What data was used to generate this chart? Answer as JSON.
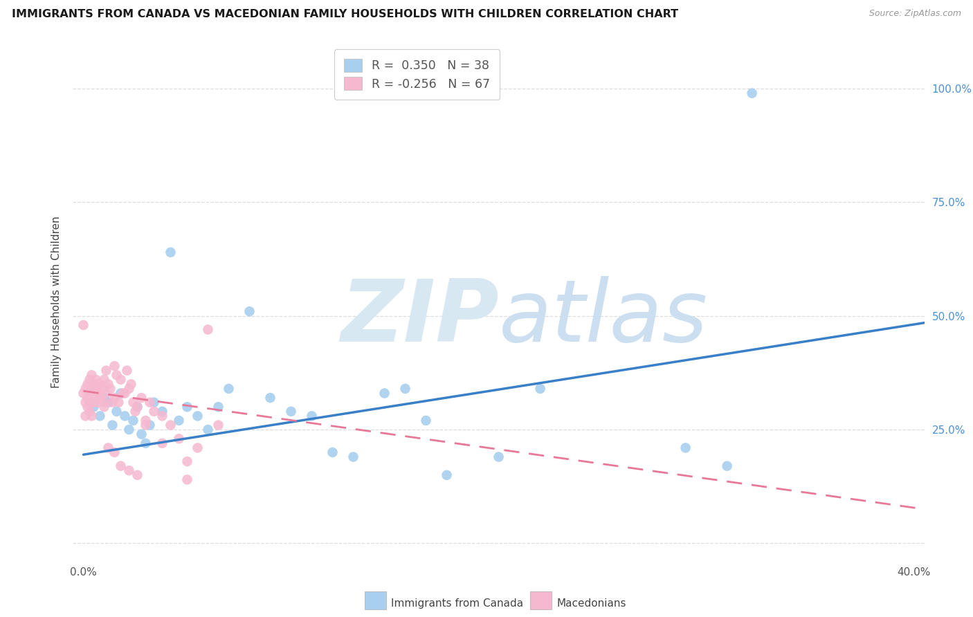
{
  "title": "IMMIGRANTS FROM CANADA VS MACEDONIAN FAMILY HOUSEHOLDS WITH CHILDREN CORRELATION CHART",
  "source": "Source: ZipAtlas.com",
  "ylabel": "Family Households with Children",
  "xlim": [
    -0.005,
    0.405
  ],
  "ylim": [
    -0.04,
    1.1
  ],
  "x_ticks": [
    0.0,
    0.05,
    0.1,
    0.15,
    0.2,
    0.25,
    0.3,
    0.35,
    0.4
  ],
  "x_tick_labels": [
    "0.0%",
    "",
    "",
    "",
    "",
    "",
    "",
    "",
    "40.0%"
  ],
  "y_ticks": [
    0.0,
    0.25,
    0.5,
    0.75,
    1.0
  ],
  "right_y_labels": [
    "",
    "25.0%",
    "50.0%",
    "75.0%",
    "100.0%"
  ],
  "blue_color": "#A8CFEE",
  "pink_color": "#F5B8CF",
  "blue_line_color": "#3A80C8",
  "pink_line_color": "#E87898",
  "legend_blue_text": "R =  0.350   N = 38",
  "legend_pink_text": "R = -0.256   N = 67",
  "bottom_label_blue": "Immigrants from Canada",
  "bottom_label_pink": "Macedonians",
  "blue_scatter_x": [
    0.005,
    0.008,
    0.01,
    0.012,
    0.014,
    0.016,
    0.018,
    0.02,
    0.022,
    0.024,
    0.026,
    0.028,
    0.03,
    0.032,
    0.034,
    0.038,
    0.042,
    0.046,
    0.05,
    0.055,
    0.06,
    0.065,
    0.07,
    0.08,
    0.09,
    0.1,
    0.11,
    0.12,
    0.13,
    0.145,
    0.155,
    0.165,
    0.175,
    0.2,
    0.22,
    0.29,
    0.31,
    0.322
  ],
  "blue_scatter_y": [
    0.3,
    0.28,
    0.32,
    0.31,
    0.26,
    0.29,
    0.33,
    0.28,
    0.25,
    0.27,
    0.3,
    0.24,
    0.22,
    0.26,
    0.31,
    0.29,
    0.64,
    0.27,
    0.3,
    0.28,
    0.25,
    0.3,
    0.34,
    0.51,
    0.32,
    0.29,
    0.28,
    0.2,
    0.19,
    0.33,
    0.34,
    0.27,
    0.15,
    0.19,
    0.34,
    0.21,
    0.17,
    0.99
  ],
  "pink_scatter_x": [
    0.0,
    0.001,
    0.001,
    0.002,
    0.002,
    0.003,
    0.003,
    0.004,
    0.004,
    0.005,
    0.005,
    0.006,
    0.006,
    0.007,
    0.007,
    0.008,
    0.008,
    0.009,
    0.01,
    0.01,
    0.011,
    0.011,
    0.012,
    0.013,
    0.014,
    0.015,
    0.015,
    0.016,
    0.017,
    0.018,
    0.019,
    0.02,
    0.021,
    0.022,
    0.023,
    0.024,
    0.025,
    0.026,
    0.028,
    0.03,
    0.032,
    0.034,
    0.038,
    0.042,
    0.046,
    0.05,
    0.055,
    0.06,
    0.065,
    0.0,
    0.001,
    0.002,
    0.003,
    0.004,
    0.005,
    0.006,
    0.007,
    0.008,
    0.01,
    0.012,
    0.015,
    0.018,
    0.022,
    0.026,
    0.03,
    0.038,
    0.05
  ],
  "pink_scatter_y": [
    0.33,
    0.34,
    0.31,
    0.35,
    0.32,
    0.36,
    0.33,
    0.37,
    0.31,
    0.35,
    0.33,
    0.36,
    0.34,
    0.33,
    0.31,
    0.32,
    0.35,
    0.34,
    0.31,
    0.36,
    0.33,
    0.38,
    0.35,
    0.34,
    0.31,
    0.39,
    0.32,
    0.37,
    0.31,
    0.36,
    0.33,
    0.33,
    0.38,
    0.34,
    0.35,
    0.31,
    0.29,
    0.3,
    0.32,
    0.27,
    0.31,
    0.29,
    0.28,
    0.26,
    0.23,
    0.18,
    0.21,
    0.47,
    0.26,
    0.48,
    0.28,
    0.3,
    0.29,
    0.28,
    0.31,
    0.34,
    0.35,
    0.32,
    0.3,
    0.21,
    0.2,
    0.17,
    0.16,
    0.15,
    0.26,
    0.22,
    0.14
  ],
  "blue_line_x0": 0.0,
  "blue_line_x1": 0.405,
  "blue_line_y0": 0.195,
  "blue_line_y1": 0.485,
  "pink_line_x0": 0.0,
  "pink_line_x1": 0.405,
  "pink_line_y0": 0.335,
  "pink_line_y1": 0.075
}
